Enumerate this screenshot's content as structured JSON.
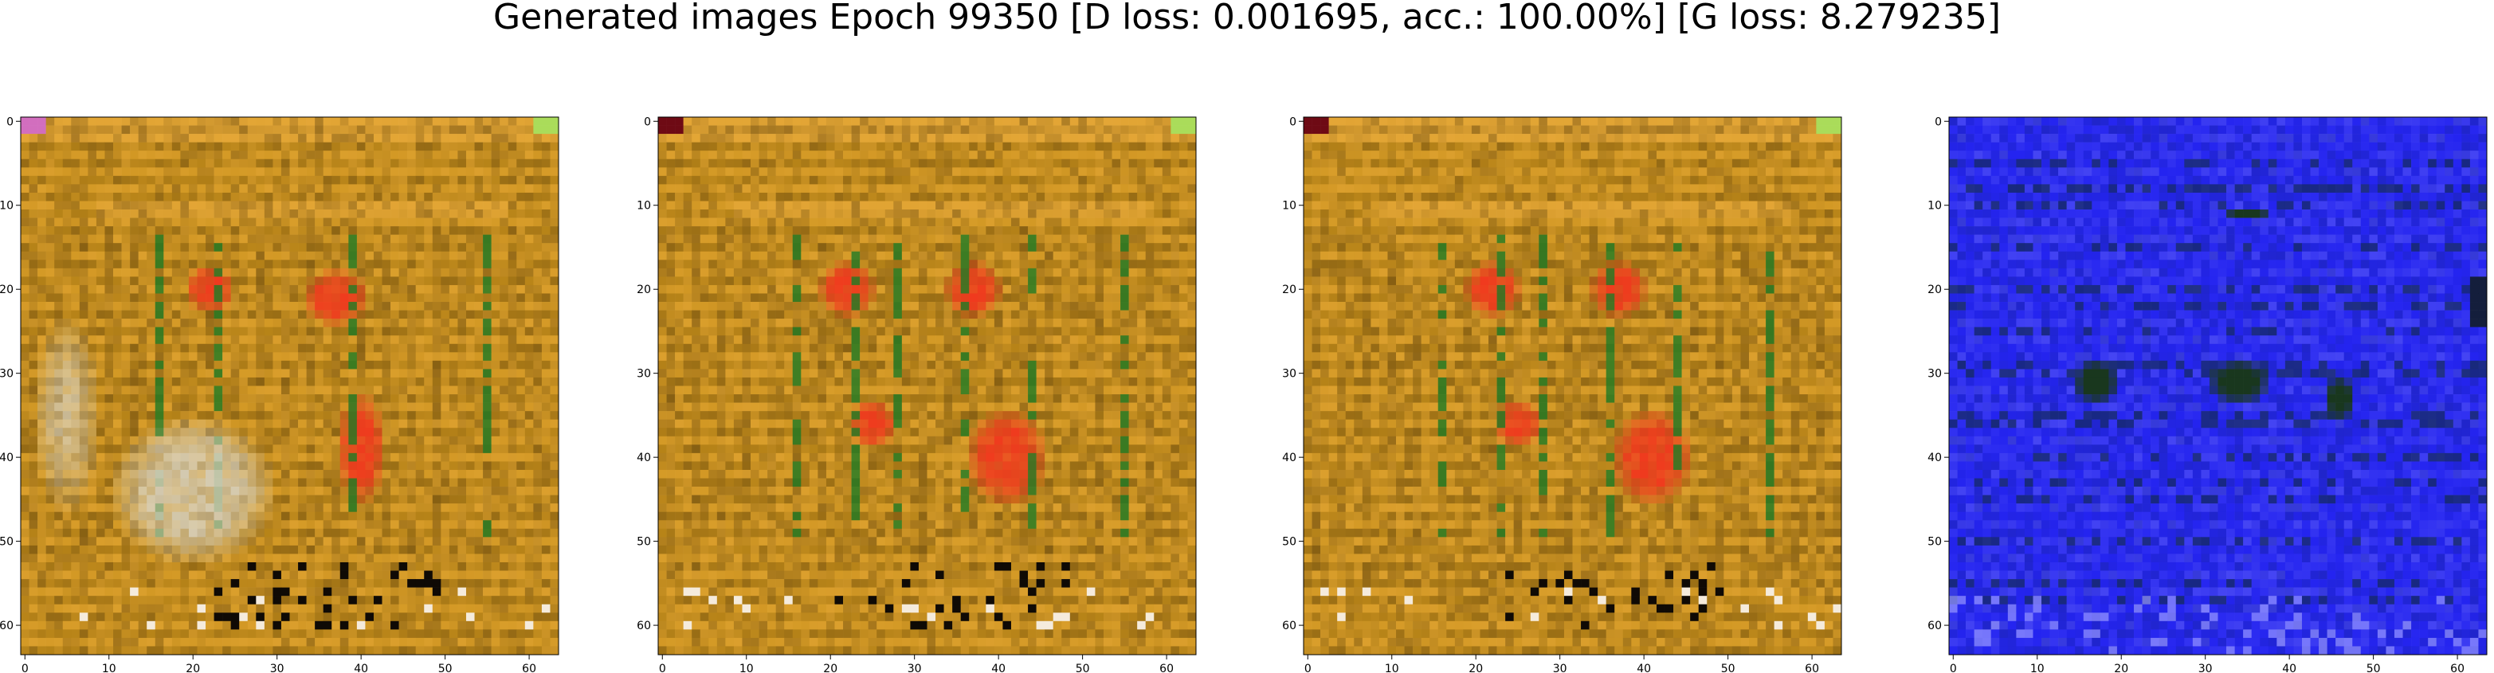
{
  "figure": {
    "title": "Generated images Epoch 99350 [D loss: 0.001695, acc.: 100.00%] [G loss: 8.279235]"
  },
  "panels": [
    {
      "style": "orange",
      "x_ticks": [
        "0",
        "10",
        "20",
        "30",
        "40",
        "50",
        "60"
      ],
      "y_ticks": [
        "0",
        "10",
        "20",
        "30",
        "40",
        "50",
        "60"
      ]
    },
    {
      "style": "orange",
      "x_ticks": [
        "0",
        "10",
        "20",
        "30",
        "40",
        "50",
        "60"
      ],
      "y_ticks": [
        "0",
        "10",
        "20",
        "30",
        "40",
        "50",
        "60"
      ]
    },
    {
      "style": "orange",
      "x_ticks": [
        "0",
        "10",
        "20",
        "30",
        "40",
        "50",
        "60"
      ],
      "y_ticks": [
        "0",
        "10",
        "20",
        "30",
        "40",
        "50",
        "60"
      ]
    },
    {
      "style": "blue",
      "x_ticks": [
        "0",
        "10",
        "20",
        "30",
        "40",
        "50",
        "60"
      ],
      "y_ticks": [
        "0",
        "10",
        "20",
        "30",
        "40",
        "50",
        "60"
      ]
    }
  ],
  "colors": {
    "orange_base": "#c8901a",
    "orange_light": "#e6a838",
    "orange_dark": "#6a4a10",
    "red_blob": "#f03a1e",
    "green_stroke": "#1e7a24",
    "pale_blob": "#d8d2c0",
    "blue_base": "#2424f0",
    "blue_dark": "#142a5a",
    "blue_light": "#6a6af6"
  }
}
